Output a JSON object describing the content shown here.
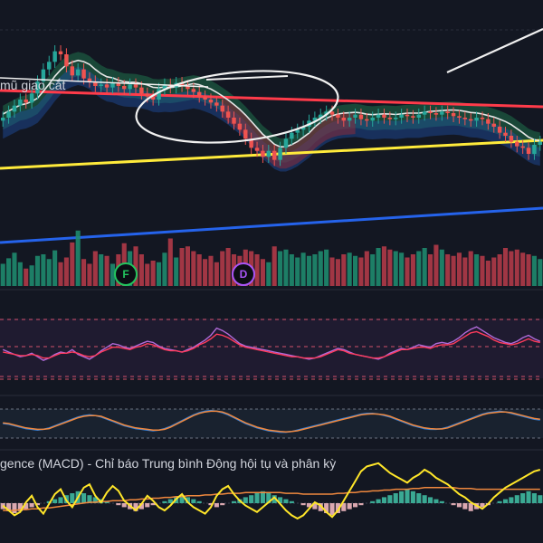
{
  "annotation_text": "mũ giao cắt",
  "macd_title": "gence (MACD) - Chỉ báo Trung bình Động hội tụ và phân kỳ",
  "markers": [
    {
      "label": "F",
      "color": "#22c55e"
    },
    {
      "label": "D",
      "color": "#a855f7"
    }
  ],
  "colors": {
    "background": "#131722",
    "candle_up": "#26a69a",
    "candle_down": "#ef5350",
    "ma_red": "#ff3b4a",
    "ma_white": "#e6e6e6",
    "trend_yellow": "#ffeb3b",
    "trend_blue": "#2563eb",
    "rsi_purple": "#b06ad8",
    "rsi_red": "#ff3b5c",
    "macd_blue": "#2f7fdb",
    "macd_orange": "#f0883e",
    "macd_yellow": "#ffe629"
  },
  "chart_data": {
    "type": "candlestick",
    "panels": [
      "price",
      "volume",
      "rsi",
      "stochastic",
      "macd"
    ],
    "price": {
      "close": [
        126,
        130,
        134,
        138,
        136,
        142,
        150,
        158,
        163,
        170,
        168,
        160,
        154,
        158,
        152,
        150,
        147,
        148,
        146,
        149,
        147,
        145,
        148,
        146,
        142,
        140,
        138,
        145,
        148,
        146,
        149,
        147,
        145,
        143,
        140,
        138,
        136,
        134,
        130,
        126,
        122,
        118,
        112,
        106,
        104,
        100,
        104,
        98,
        106,
        112,
        116,
        118,
        120,
        124,
        126,
        128,
        130,
        128,
        126,
        124,
        126,
        128,
        125,
        124,
        126,
        128,
        126,
        125,
        126,
        128,
        127,
        126,
        128,
        130,
        129,
        128,
        130,
        129,
        127,
        126,
        125,
        124,
        126,
        125,
        122,
        120,
        116,
        114,
        110,
        107,
        106,
        102,
        108,
        110
      ]
    },
    "volume": [
      28,
      35,
      42,
      30,
      22,
      26,
      38,
      40,
      34,
      45,
      30,
      36,
      55,
      70,
      34,
      28,
      44,
      40,
      38,
      28,
      40,
      54,
      44,
      50,
      40,
      28,
      32,
      30,
      42,
      60,
      36,
      48,
      50,
      44,
      40,
      34,
      38,
      30,
      44,
      48,
      40,
      38,
      46,
      44,
      40,
      34,
      30,
      50,
      44,
      46,
      40,
      36,
      42,
      38,
      40,
      44,
      46,
      36,
      34,
      40,
      42,
      38,
      36,
      44,
      40,
      48,
      50,
      46,
      44,
      42,
      36,
      40,
      44,
      48,
      40,
      52,
      46,
      40,
      38,
      42,
      36,
      44,
      40,
      38,
      32,
      36,
      40,
      48,
      44,
      46,
      42,
      40,
      38,
      34
    ],
    "rsi": {
      "fast": [
        48,
        44,
        40,
        36,
        38,
        42,
        36,
        30,
        34,
        40,
        44,
        42,
        48,
        40,
        36,
        32,
        38,
        46,
        52,
        58,
        56,
        52,
        50,
        54,
        58,
        62,
        60,
        54,
        50,
        48,
        46,
        44,
        48,
        52,
        58,
        64,
        72,
        84,
        80,
        74,
        66,
        58,
        54,
        52,
        50,
        48,
        46,
        44,
        42,
        40,
        38,
        36,
        34,
        32,
        34,
        38,
        42,
        46,
        50,
        48,
        44,
        40,
        38,
        36,
        34,
        32,
        36,
        42,
        46,
        50,
        48,
        52,
        56,
        54,
        52,
        58,
        60,
        58,
        62,
        68,
        76,
        82,
        86,
        80,
        74,
        68,
        64,
        60,
        58,
        62,
        68,
        72,
        66,
        62
      ],
      "slow": [
        44,
        42,
        40,
        38,
        38,
        40,
        38,
        34,
        34,
        38,
        42,
        42,
        44,
        42,
        38,
        36,
        38,
        44,
        48,
        52,
        52,
        50,
        48,
        52,
        54,
        58,
        56,
        52,
        48,
        46,
        46,
        44,
        46,
        50,
        56,
        60,
        66,
        74,
        72,
        68,
        62,
        56,
        52,
        50,
        48,
        46,
        44,
        42,
        40,
        38,
        36,
        36,
        34,
        34,
        34,
        36,
        40,
        44,
        48,
        46,
        42,
        40,
        38,
        36,
        34,
        34,
        36,
        40,
        44,
        48,
        48,
        50,
        52,
        52,
        50,
        54,
        56,
        56,
        58,
        64,
        70,
        76,
        78,
        74,
        70,
        64,
        60,
        58,
        56,
        58,
        62,
        66,
        62,
        60
      ]
    },
    "stochastic": {
      "k": [
        50,
        48,
        44,
        40,
        36,
        34,
        32,
        34,
        38,
        44,
        50,
        56,
        62,
        68,
        72,
        74,
        72,
        68,
        62,
        56,
        50,
        44,
        40,
        36,
        34,
        32,
        30,
        32,
        36,
        42,
        50,
        58,
        66,
        74,
        80,
        84,
        86,
        84,
        80,
        74,
        66,
        58,
        50,
        44,
        38,
        34,
        30,
        28,
        26,
        26,
        28,
        32,
        36,
        40,
        44,
        48,
        52,
        56,
        60,
        64,
        68,
        72,
        76,
        78,
        78,
        76,
        72,
        68,
        62,
        56,
        50,
        44,
        40,
        36,
        34,
        34,
        36,
        40,
        46,
        52,
        58,
        64,
        70,
        76,
        80,
        82,
        84,
        82,
        78,
        74,
        70,
        66,
        62,
        60
      ],
      "d": [
        52,
        50,
        46,
        42,
        38,
        36,
        34,
        34,
        36,
        42,
        48,
        54,
        60,
        66,
        70,
        72,
        72,
        70,
        64,
        58,
        52,
        46,
        42,
        38,
        36,
        34,
        32,
        32,
        34,
        40,
        48,
        56,
        64,
        72,
        78,
        82,
        84,
        84,
        82,
        76,
        68,
        60,
        52,
        46,
        40,
        36,
        32,
        30,
        28,
        27,
        28,
        30,
        34,
        38,
        42,
        46,
        50,
        54,
        58,
        62,
        66,
        70,
        74,
        76,
        77,
        76,
        74,
        70,
        64,
        58,
        52,
        46,
        42,
        38,
        36,
        35,
        35,
        38,
        44,
        50,
        56,
        62,
        68,
        74,
        78,
        80,
        82,
        82,
        80,
        76,
        72,
        68,
        64,
        62
      ]
    },
    "macd": {
      "signal_line": [
        46,
        40,
        34,
        38,
        50,
        58,
        44,
        36,
        48,
        60,
        66,
        52,
        44,
        56,
        68,
        72,
        58,
        50,
        62,
        70,
        64,
        52,
        46,
        40,
        48,
        58,
        52,
        44,
        40,
        46,
        54,
        60,
        50,
        44,
        40,
        36,
        44,
        58,
        66,
        70,
        60,
        52,
        46,
        42,
        38,
        44,
        50,
        56,
        48,
        40,
        34,
        30,
        34,
        42,
        50,
        46,
        38,
        32,
        40,
        52,
        64,
        76,
        88,
        94,
        96,
        98,
        92,
        86,
        82,
        78,
        74,
        80,
        84,
        90,
        86,
        80,
        76,
        72,
        66,
        60,
        56,
        50,
        46,
        42,
        48,
        56,
        62,
        68,
        72,
        76,
        80,
        84,
        88,
        90
      ],
      "macd_line": [
        40,
        40,
        40,
        41,
        41,
        42,
        42,
        43,
        43,
        44,
        45,
        46,
        47,
        48,
        49,
        50,
        50,
        51,
        51,
        52,
        52,
        52,
        53,
        53,
        54,
        54,
        55,
        55,
        56,
        56,
        57,
        57,
        58,
        58,
        58,
        59,
        59,
        60,
        60,
        61,
        61,
        61,
        62,
        62,
        62,
        62,
        62,
        62,
        62,
        61,
        61,
        61,
        60,
        60,
        60,
        60,
        60,
        60,
        61,
        61,
        62,
        62,
        63,
        63,
        64,
        64,
        65,
        65,
        66,
        66,
        66,
        67,
        67,
        68,
        68,
        68,
        68,
        68,
        68,
        67,
        67,
        67,
        66,
        66,
        66,
        66,
        66,
        66,
        66,
        66,
        66,
        66,
        66,
        66
      ],
      "histogram": [
        -3,
        -4,
        -5,
        -4,
        -3,
        -2,
        -1,
        0,
        1,
        2,
        3,
        4,
        5,
        6,
        5,
        4,
        3,
        2,
        1,
        0,
        -1,
        -2,
        -3,
        -4,
        -3,
        -2,
        -1,
        0,
        1,
        2,
        3,
        4,
        3,
        2,
        1,
        0,
        -1,
        -2,
        -1,
        0,
        1,
        2,
        3,
        4,
        5,
        6,
        5,
        4,
        3,
        2,
        1,
        0,
        -1,
        -2,
        -3,
        -4,
        -5,
        -6,
        -5,
        -4,
        -3,
        -2,
        -1,
        0,
        1,
        2,
        3,
        4,
        5,
        6,
        7,
        6,
        5,
        4,
        3,
        2,
        1,
        0,
        -1,
        -2,
        -3,
        -4,
        -3,
        -2,
        -1,
        0,
        1,
        2,
        3,
        4,
        5,
        6,
        5,
        4
      ]
    }
  }
}
